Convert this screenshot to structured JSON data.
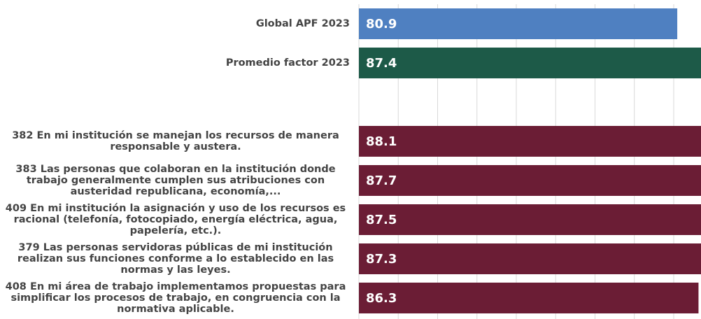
{
  "chart_data": {
    "type": "bar",
    "orientation": "horizontal",
    "categories": [
      "Global APF 2023",
      "Promedio factor 2023",
      null,
      "382 En mi institución se manejan los recursos de manera responsable y austera.",
      "383 Las personas que colaboran en la institución donde trabajo generalmente cumplen sus atribuciones con austeridad republicana, economía,...",
      "409 En mi institución la asignación y uso de los recursos es racional (telefonía, fotocopiado, energía eléctrica, agua, papelería, etc.).",
      "379 Las personas servidoras públicas de mi institución realizan sus funciones conforme a lo establecido en las normas y las leyes.",
      "408 En mi área de trabajo implementamos propuestas para simplificar los procesos de trabajo, en congruencia con la normativa aplicable."
    ],
    "values": [
      80.9,
      87.4,
      null,
      88.1,
      87.7,
      87.5,
      87.3,
      86.3
    ],
    "colors": [
      "#4f80c1",
      "#1d5a48",
      null,
      "#6b1d35",
      "#6b1d35",
      "#6b1d35",
      "#6b1d35",
      "#6b1d35"
    ],
    "xlim": [
      0,
      100
    ],
    "xticks": [
      0,
      10,
      20,
      30,
      40,
      50,
      60,
      70,
      80,
      90,
      100
    ],
    "grid": true
  }
}
